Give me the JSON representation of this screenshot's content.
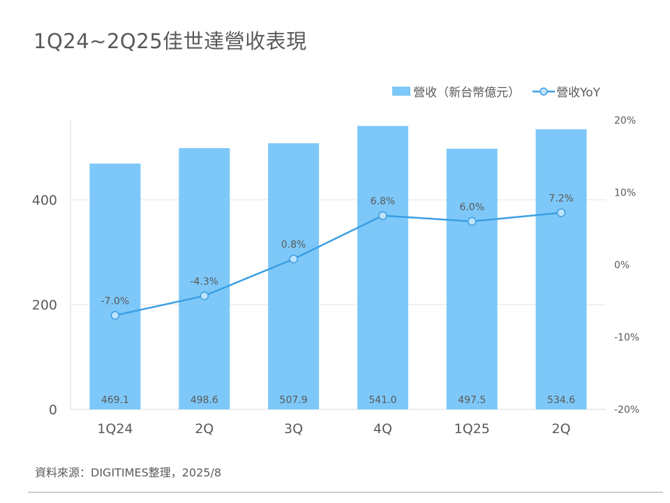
{
  "title": "1Q24~2Q25佳世達營收表現",
  "source": "資料來源：DIGITIMES整理，2025/8",
  "colors": {
    "bar": "#7dc8f8",
    "line": "#3a9ee4",
    "marker_fill": "#bfe3fb",
    "axis_text": "#595959",
    "grid": "#e3e3e3"
  },
  "chart_data": {
    "type": "bar",
    "categories": [
      "1Q24",
      "2Q",
      "3Q",
      "4Q",
      "1Q25",
      "2Q"
    ],
    "series": [
      {
        "name": "營收（新台幣億元）",
        "type": "bar",
        "axis": "left",
        "values": [
          469.1,
          498.6,
          507.9,
          541.0,
          497.5,
          534.6
        ],
        "labels": [
          "469.1",
          "498.6",
          "507.9",
          "541.0",
          "497.5",
          "534.6"
        ]
      },
      {
        "name": "營收YoY",
        "type": "line",
        "axis": "right",
        "values": [
          -7.0,
          -4.3,
          0.8,
          6.8,
          6.0,
          7.2
        ],
        "labels": [
          "-7.0%",
          "-4.3%",
          "0.8%",
          "6.8%",
          "6.0%",
          "7.2%"
        ]
      }
    ],
    "y_left": {
      "min": 0,
      "max": 550,
      "ticks": [
        0,
        200,
        400
      ],
      "tick_labels": [
        "0",
        "200",
        "400"
      ]
    },
    "y_right": {
      "min": -20,
      "max": 20,
      "ticks": [
        -20,
        -10,
        0,
        10,
        20
      ],
      "tick_labels": [
        "-20%",
        "-10%",
        "0%",
        "10%",
        "20%"
      ]
    },
    "grid": true,
    "legend_position": "top-right"
  }
}
